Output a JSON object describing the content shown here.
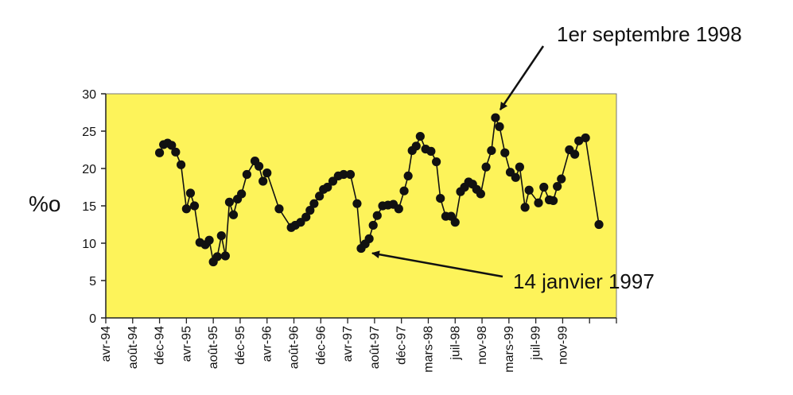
{
  "chart_data": {
    "type": "line",
    "ylabel": "%o",
    "ylim": [
      0,
      30
    ],
    "yticks": [
      "0",
      "5",
      "10",
      "15",
      "20",
      "25",
      "30"
    ],
    "xlabels": [
      "avr-94",
      "août-94",
      "déc-94",
      "avr-95",
      "août-95",
      "déc-95",
      "avr-96",
      "août-96",
      "déc-96",
      "avr-97",
      "août-97",
      "déc-97",
      "mars-98",
      "juil-98",
      "nov-98",
      "mars-99",
      "juil-99",
      "nov-99"
    ],
    "grid": false,
    "colors": {
      "plot_bg": "#fdf35a",
      "line": "#111111",
      "marker": "#111111"
    },
    "series": [
      {
        "points": [
          [
            4.0,
            22.1
          ],
          [
            4.3,
            23.2
          ],
          [
            4.6,
            23.4
          ],
          [
            4.9,
            23.1
          ],
          [
            5.2,
            22.2
          ],
          [
            5.6,
            20.5
          ],
          [
            6.0,
            14.6
          ],
          [
            6.3,
            16.7
          ],
          [
            6.6,
            15.0
          ],
          [
            7.0,
            10.1
          ],
          [
            7.4,
            9.8
          ],
          [
            7.7,
            10.4
          ],
          [
            8.0,
            7.5
          ],
          [
            8.3,
            8.2
          ],
          [
            8.6,
            11.0
          ],
          [
            8.9,
            8.3
          ],
          [
            9.2,
            15.5
          ],
          [
            9.5,
            13.8
          ],
          [
            9.8,
            15.9
          ],
          [
            10.1,
            16.6
          ],
          [
            10.5,
            19.2
          ],
          [
            11.1,
            21.0
          ],
          [
            11.4,
            20.3
          ],
          [
            11.7,
            18.3
          ],
          [
            12.0,
            19.4
          ],
          [
            12.9,
            14.6
          ],
          [
            13.8,
            12.1
          ],
          [
            14.1,
            12.4
          ],
          [
            14.5,
            12.8
          ],
          [
            14.9,
            13.5
          ],
          [
            15.2,
            14.4
          ],
          [
            15.5,
            15.3
          ],
          [
            15.9,
            16.3
          ],
          [
            16.2,
            17.2
          ],
          [
            16.5,
            17.5
          ],
          [
            16.9,
            18.3
          ],
          [
            17.3,
            19.0
          ],
          [
            17.7,
            19.2
          ],
          [
            18.2,
            19.2
          ],
          [
            18.7,
            15.3
          ],
          [
            19.0,
            9.3
          ],
          [
            19.3,
            9.9
          ],
          [
            19.6,
            10.6
          ],
          [
            19.9,
            12.4
          ],
          [
            20.2,
            13.7
          ],
          [
            20.6,
            15.0
          ],
          [
            21.0,
            15.1
          ],
          [
            21.4,
            15.2
          ],
          [
            21.8,
            14.6
          ],
          [
            22.2,
            17.0
          ],
          [
            22.5,
            19.0
          ],
          [
            22.8,
            22.4
          ],
          [
            23.1,
            23.0
          ],
          [
            23.4,
            24.3
          ],
          [
            23.8,
            22.6
          ],
          [
            24.2,
            22.3
          ],
          [
            24.6,
            20.9
          ],
          [
            24.9,
            16.0
          ],
          [
            25.3,
            13.6
          ],
          [
            25.7,
            13.6
          ],
          [
            26.0,
            12.8
          ],
          [
            26.4,
            16.9
          ],
          [
            26.7,
            17.5
          ],
          [
            27.0,
            18.2
          ],
          [
            27.3,
            17.9
          ],
          [
            27.6,
            17.2
          ],
          [
            27.9,
            16.6
          ],
          [
            28.3,
            20.2
          ],
          [
            28.7,
            22.4
          ],
          [
            29.0,
            26.8
          ],
          [
            29.3,
            25.6
          ],
          [
            29.7,
            22.1
          ],
          [
            30.1,
            19.5
          ],
          [
            30.5,
            18.8
          ],
          [
            30.8,
            20.2
          ],
          [
            31.2,
            14.8
          ],
          [
            31.5,
            17.1
          ],
          [
            32.2,
            15.4
          ],
          [
            32.6,
            17.5
          ],
          [
            33.0,
            15.8
          ],
          [
            33.3,
            15.7
          ],
          [
            33.6,
            17.6
          ],
          [
            33.9,
            18.6
          ],
          [
            34.5,
            22.5
          ],
          [
            34.9,
            21.9
          ],
          [
            35.2,
            23.7
          ],
          [
            35.7,
            24.1
          ],
          [
            36.7,
            12.5
          ]
        ]
      }
    ],
    "annotations": [
      {
        "text": "1er septembre 1998",
        "target": [
          29.0,
          26.8
        ]
      },
      {
        "text": "14 janvier 1997",
        "target": [
          19.0,
          9.3
        ]
      }
    ]
  }
}
